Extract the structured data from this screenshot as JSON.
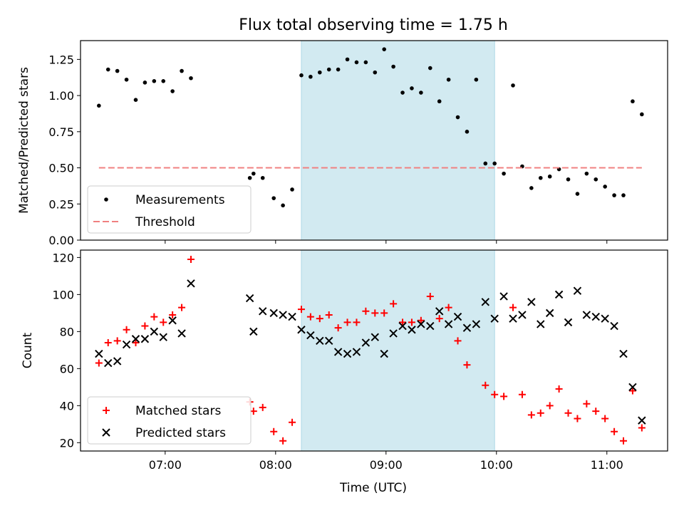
{
  "chart_data": [
    {
      "type": "scatter",
      "title": "Flux total observing time = 1.75 h",
      "ylabel": "Matched/Predicted stars",
      "xlabel": "",
      "xlim": [
        "06:14",
        "11:33"
      ],
      "ylim": [
        0,
        1.38
      ],
      "yticks": [
        "0.00",
        "0.25",
        "0.50",
        "0.75",
        "1.00",
        "1.25"
      ],
      "shaded_interval": [
        "08:14",
        "09:59"
      ],
      "shade_color": "#add8e6",
      "legend_position": "lower-left",
      "series": [
        {
          "name": "Measurements",
          "marker": "dot",
          "color": "#000000",
          "points": [
            [
              "06:24",
              0.93
            ],
            [
              "06:29",
              1.18
            ],
            [
              "06:34",
              1.17
            ],
            [
              "06:39",
              1.11
            ],
            [
              "06:44",
              0.97
            ],
            [
              "06:49",
              1.09
            ],
            [
              "06:54",
              1.1
            ],
            [
              "06:59",
              1.1
            ],
            [
              "07:04",
              1.03
            ],
            [
              "07:09",
              1.17
            ],
            [
              "07:14",
              1.12
            ],
            [
              "07:46",
              0.43
            ],
            [
              "07:48",
              0.46
            ],
            [
              "07:53",
              0.43
            ],
            [
              "07:59",
              0.29
            ],
            [
              "08:04",
              0.24
            ],
            [
              "08:09",
              0.35
            ],
            [
              "08:14",
              1.14
            ],
            [
              "08:19",
              1.13
            ],
            [
              "08:24",
              1.16
            ],
            [
              "08:29",
              1.18
            ],
            [
              "08:34",
              1.18
            ],
            [
              "08:39",
              1.25
            ],
            [
              "08:44",
              1.23
            ],
            [
              "08:49",
              1.23
            ],
            [
              "08:54",
              1.16
            ],
            [
              "08:59",
              1.32
            ],
            [
              "09:04",
              1.2
            ],
            [
              "09:09",
              1.02
            ],
            [
              "09:14",
              1.05
            ],
            [
              "09:19",
              1.02
            ],
            [
              "09:24",
              1.19
            ],
            [
              "09:29",
              0.96
            ],
            [
              "09:34",
              1.11
            ],
            [
              "09:39",
              0.85
            ],
            [
              "09:44",
              0.75
            ],
            [
              "09:49",
              1.11
            ],
            [
              "09:54",
              0.53
            ],
            [
              "09:59",
              0.53
            ],
            [
              "10:04",
              0.46
            ],
            [
              "10:09",
              1.07
            ],
            [
              "10:14",
              0.51
            ],
            [
              "10:19",
              0.36
            ],
            [
              "10:24",
              0.43
            ],
            [
              "10:29",
              0.44
            ],
            [
              "10:34",
              0.49
            ],
            [
              "10:39",
              0.42
            ],
            [
              "10:44",
              0.32
            ],
            [
              "10:49",
              0.46
            ],
            [
              "10:54",
              0.42
            ],
            [
              "10:59",
              0.37
            ],
            [
              "11:04",
              0.31
            ],
            [
              "11:09",
              0.31
            ],
            [
              "11:14",
              0.96
            ],
            [
              "11:19",
              0.87
            ]
          ]
        },
        {
          "name": "Threshold",
          "marker": "dashed-line",
          "color": "#f08080",
          "points": [
            [
              "06:24",
              0.5
            ],
            [
              "11:19",
              0.5
            ]
          ]
        }
      ]
    },
    {
      "type": "scatter",
      "title": "",
      "ylabel": "Count",
      "xlabel": "Time (UTC)",
      "xlim": [
        "06:14",
        "11:33"
      ],
      "ylim": [
        15.5,
        124
      ],
      "yticks": [
        "20",
        "40",
        "60",
        "80",
        "100",
        "120"
      ],
      "xticks": [
        "07:00",
        "08:00",
        "09:00",
        "10:00",
        "11:00"
      ],
      "shaded_interval": [
        "08:14",
        "09:59"
      ],
      "shade_color": "#add8e6",
      "legend_position": "lower-left",
      "series": [
        {
          "name": "Matched stars",
          "marker": "plus",
          "color": "#ff0000",
          "points": [
            [
              "06:24",
              63
            ],
            [
              "06:29",
              74
            ],
            [
              "06:34",
              75
            ],
            [
              "06:39",
              81
            ],
            [
              "06:44",
              74
            ],
            [
              "06:49",
              83
            ],
            [
              "06:54",
              88
            ],
            [
              "06:59",
              85
            ],
            [
              "07:04",
              89
            ],
            [
              "07:09",
              93
            ],
            [
              "07:14",
              119
            ],
            [
              "07:46",
              42
            ],
            [
              "07:48",
              37
            ],
            [
              "07:53",
              39
            ],
            [
              "07:59",
              26
            ],
            [
              "08:04",
              21
            ],
            [
              "08:09",
              31
            ],
            [
              "08:14",
              92
            ],
            [
              "08:19",
              88
            ],
            [
              "08:24",
              87
            ],
            [
              "08:29",
              89
            ],
            [
              "08:34",
              82
            ],
            [
              "08:39",
              85
            ],
            [
              "08:44",
              85
            ],
            [
              "08:49",
              91
            ],
            [
              "08:54",
              90
            ],
            [
              "08:59",
              90
            ],
            [
              "09:04",
              95
            ],
            [
              "09:09",
              85
            ],
            [
              "09:14",
              85
            ],
            [
              "09:19",
              86
            ],
            [
              "09:24",
              99
            ],
            [
              "09:29",
              87
            ],
            [
              "09:34",
              93
            ],
            [
              "09:39",
              75
            ],
            [
              "09:44",
              62
            ],
            [
              "09:49",
              null
            ],
            [
              "09:54",
              51
            ],
            [
              "09:59",
              46
            ],
            [
              "10:04",
              45
            ],
            [
              "10:09",
              93
            ],
            [
              "10:14",
              46
            ],
            [
              "10:19",
              35
            ],
            [
              "10:24",
              36
            ],
            [
              "10:29",
              40
            ],
            [
              "10:34",
              49
            ],
            [
              "10:39",
              36
            ],
            [
              "10:44",
              33
            ],
            [
              "10:49",
              41
            ],
            [
              "10:54",
              37
            ],
            [
              "10:59",
              33
            ],
            [
              "11:04",
              26
            ],
            [
              "11:09",
              21
            ],
            [
              "11:14",
              48
            ],
            [
              "11:19",
              28
            ]
          ]
        },
        {
          "name": "Predicted stars",
          "marker": "x",
          "color": "#000000",
          "points": [
            [
              "06:24",
              68
            ],
            [
              "06:29",
              63
            ],
            [
              "06:34",
              64
            ],
            [
              "06:39",
              73
            ],
            [
              "06:44",
              76
            ],
            [
              "06:49",
              76
            ],
            [
              "06:54",
              80
            ],
            [
              "06:59",
              77
            ],
            [
              "07:04",
              86
            ],
            [
              "07:09",
              79
            ],
            [
              "07:14",
              106
            ],
            [
              "07:46",
              98
            ],
            [
              "07:48",
              80
            ],
            [
              "07:53",
              91
            ],
            [
              "07:59",
              90
            ],
            [
              "08:04",
              89
            ],
            [
              "08:09",
              88
            ],
            [
              "08:14",
              81
            ],
            [
              "08:19",
              78
            ],
            [
              "08:24",
              75
            ],
            [
              "08:29",
              75
            ],
            [
              "08:34",
              69
            ],
            [
              "08:39",
              68
            ],
            [
              "08:44",
              69
            ],
            [
              "08:49",
              74
            ],
            [
              "08:54",
              77
            ],
            [
              "08:59",
              68
            ],
            [
              "09:04",
              79
            ],
            [
              "09:09",
              83
            ],
            [
              "09:14",
              81
            ],
            [
              "09:19",
              84
            ],
            [
              "09:24",
              83
            ],
            [
              "09:29",
              91
            ],
            [
              "09:34",
              84
            ],
            [
              "09:39",
              88
            ],
            [
              "09:44",
              82
            ],
            [
              "09:49",
              84
            ],
            [
              "09:54",
              96
            ],
            [
              "09:59",
              87
            ],
            [
              "10:04",
              99
            ],
            [
              "10:09",
              87
            ],
            [
              "10:14",
              89
            ],
            [
              "10:19",
              96
            ],
            [
              "10:24",
              84
            ],
            [
              "10:29",
              90
            ],
            [
              "10:34",
              100
            ],
            [
              "10:39",
              85
            ],
            [
              "10:44",
              102
            ],
            [
              "10:49",
              89
            ],
            [
              "10:54",
              88
            ],
            [
              "10:59",
              87
            ],
            [
              "11:04",
              83
            ],
            [
              "11:09",
              68
            ],
            [
              "11:14",
              50
            ],
            [
              "11:19",
              32
            ]
          ]
        }
      ]
    }
  ]
}
